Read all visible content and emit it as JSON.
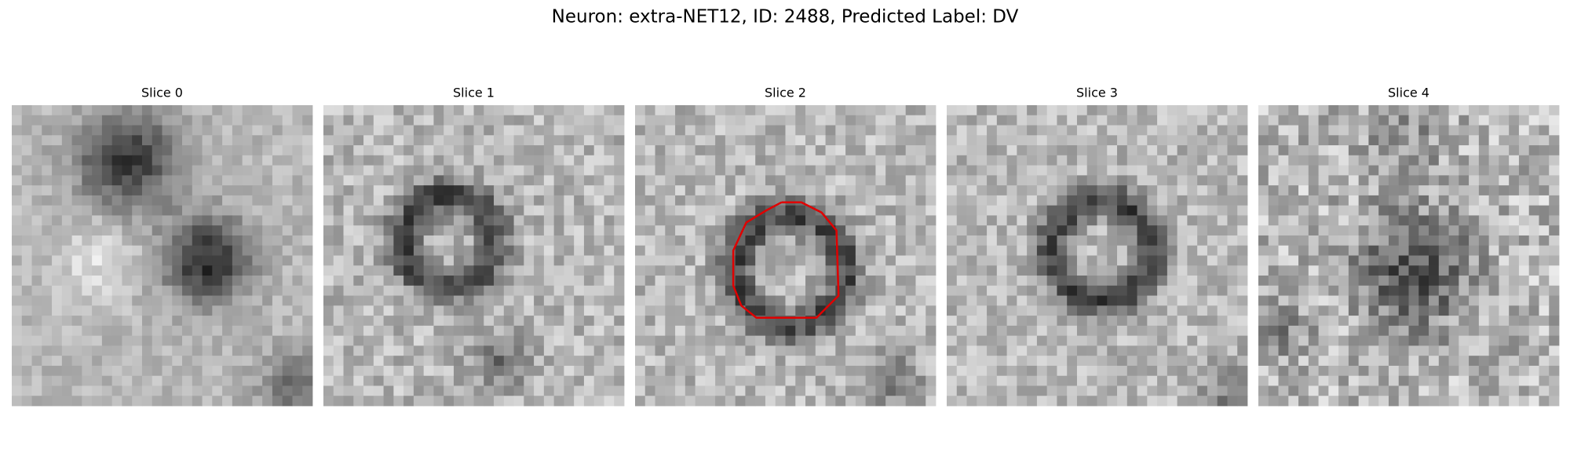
{
  "title": "Neuron: extra-NET12, ID: 2488, Predicted Label: DV",
  "panels": [
    {
      "label": "Slice 0"
    },
    {
      "label": "Slice 1"
    },
    {
      "label": "Slice 2"
    },
    {
      "label": "Slice 3"
    },
    {
      "label": "Slice 4"
    }
  ]
}
